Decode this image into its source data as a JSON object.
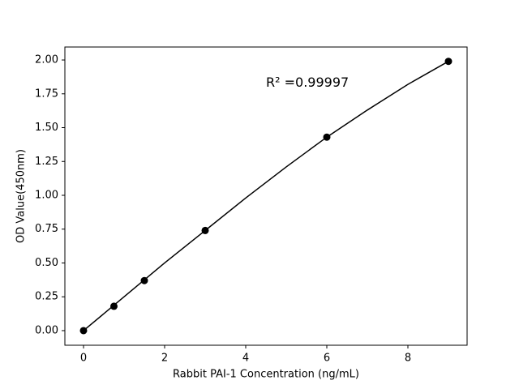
{
  "chart_data": {
    "type": "line",
    "x_label": "Rabbit PAI-1 Concentration (ng/mL)",
    "y_label": "OD Value(450nm)",
    "annotation": {
      "text": "R² =0.99997",
      "x": 4.5,
      "y": 1.83
    },
    "series": [
      {
        "color": "#000000",
        "mode": "markers",
        "x": [
          0,
          0.75,
          1.5,
          3,
          6,
          9
        ],
        "values": [
          0,
          0.18,
          0.37,
          0.74,
          1.43,
          1.99
        ]
      },
      {
        "color": "#000000",
        "mode": "line",
        "x": [
          0,
          1,
          2,
          3,
          4,
          5,
          6,
          7,
          8,
          9
        ],
        "values": [
          0,
          0.25,
          0.5,
          0.74,
          0.98,
          1.21,
          1.43,
          1.63,
          1.82,
          1.99
        ]
      }
    ],
    "xlim": [
      -0.46,
      9.46
    ],
    "ylim": [
      -0.108,
      2.096
    ],
    "xticks": [
      0,
      2,
      4,
      6,
      8
    ],
    "yticks": [
      {
        "value": 0,
        "label": "0.00"
      },
      {
        "value": 0.25,
        "label": "0.25"
      },
      {
        "value": 0.5,
        "label": "0.50"
      },
      {
        "value": 0.75,
        "label": "0.75"
      },
      {
        "value": 1,
        "label": "1.00"
      },
      {
        "value": 1.25,
        "label": "1.25"
      },
      {
        "value": 1.5,
        "label": "1.50"
      },
      {
        "value": 1.75,
        "label": "1.75"
      },
      {
        "value": 2,
        "label": "2.00"
      }
    ]
  }
}
